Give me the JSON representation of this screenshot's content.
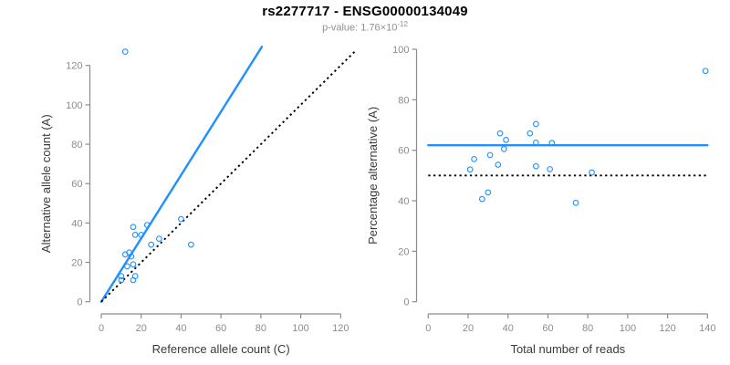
{
  "header": {
    "title": "rs2277717 - ENSG00000134049",
    "subtitle_prefix": "p-value: 1.76×10",
    "subtitle_exponent": "-12"
  },
  "colors": {
    "accent_blue": "#1e90ff",
    "axis_gray": "#8c8c8c",
    "label_dark": "#3a3a3a",
    "subtitle_gray": "#909090",
    "line_black": "#000000"
  },
  "chart_data": [
    {
      "id": "ref-vs-alt",
      "type": "scatter",
      "title": "",
      "xlabel": "Reference allele count (C)",
      "ylabel": "Alternative allele count (A)",
      "xlim": [
        0,
        120
      ],
      "ylim": [
        0,
        120
      ],
      "xticks": [
        0,
        20,
        40,
        60,
        80,
        100,
        120
      ],
      "yticks": [
        0,
        20,
        40,
        60,
        80,
        100,
        120
      ],
      "grid": false,
      "legend": "none",
      "points": [
        [
          12,
          127
        ],
        [
          16,
          38
        ],
        [
          23,
          39
        ],
        [
          17,
          34
        ],
        [
          20,
          34
        ],
        [
          25,
          29
        ],
        [
          29,
          32
        ],
        [
          40,
          42
        ],
        [
          45,
          29
        ],
        [
          12,
          24
        ],
        [
          14,
          25
        ],
        [
          15,
          23
        ],
        [
          13,
          18
        ],
        [
          16,
          19
        ],
        [
          10,
          13
        ],
        [
          10,
          11
        ],
        [
          17,
          13
        ],
        [
          16,
          11
        ]
      ],
      "lines": [
        {
          "name": "fit-line",
          "style": "solid",
          "color": "accent_blue",
          "points": [
            [
              0,
              0
            ],
            [
              80.5,
              129.5
            ]
          ]
        },
        {
          "name": "identity-line",
          "style": "dotted",
          "color": "line_black",
          "points": [
            [
              0,
              0
            ],
            [
              127,
              127
            ]
          ]
        }
      ]
    },
    {
      "id": "reads-vs-percentage",
      "type": "scatter",
      "title": "",
      "xlabel": "Total number of reads",
      "ylabel": "Percentage alternative (A)",
      "xlim": [
        0,
        140
      ],
      "ylim": [
        0,
        100
      ],
      "xticks": [
        0,
        20,
        40,
        60,
        80,
        100,
        120,
        140
      ],
      "yticks": [
        0,
        20,
        40,
        60,
        80,
        100
      ],
      "grid": false,
      "legend": "none",
      "points": [
        [
          139,
          91.4
        ],
        [
          54,
          70.4
        ],
        [
          62,
          62.9
        ],
        [
          51,
          66.7
        ],
        [
          54,
          63.0
        ],
        [
          54,
          53.7
        ],
        [
          61,
          52.5
        ],
        [
          82,
          51.2
        ],
        [
          74,
          39.2
        ],
        [
          36,
          66.7
        ],
        [
          39,
          64.1
        ],
        [
          38,
          60.5
        ],
        [
          31,
          58.1
        ],
        [
          23,
          56.5
        ],
        [
          35,
          54.3
        ],
        [
          21,
          52.4
        ],
        [
          30,
          43.3
        ],
        [
          27,
          40.7
        ]
      ],
      "lines": [
        {
          "name": "fit-line",
          "style": "solid",
          "color": "accent_blue",
          "points": [
            [
              0,
              62
            ],
            [
              140,
              62
            ]
          ]
        },
        {
          "name": "reference-line",
          "style": "dotted",
          "color": "line_black",
          "points": [
            [
              0,
              50
            ],
            [
              140,
              50
            ]
          ]
        }
      ]
    }
  ]
}
